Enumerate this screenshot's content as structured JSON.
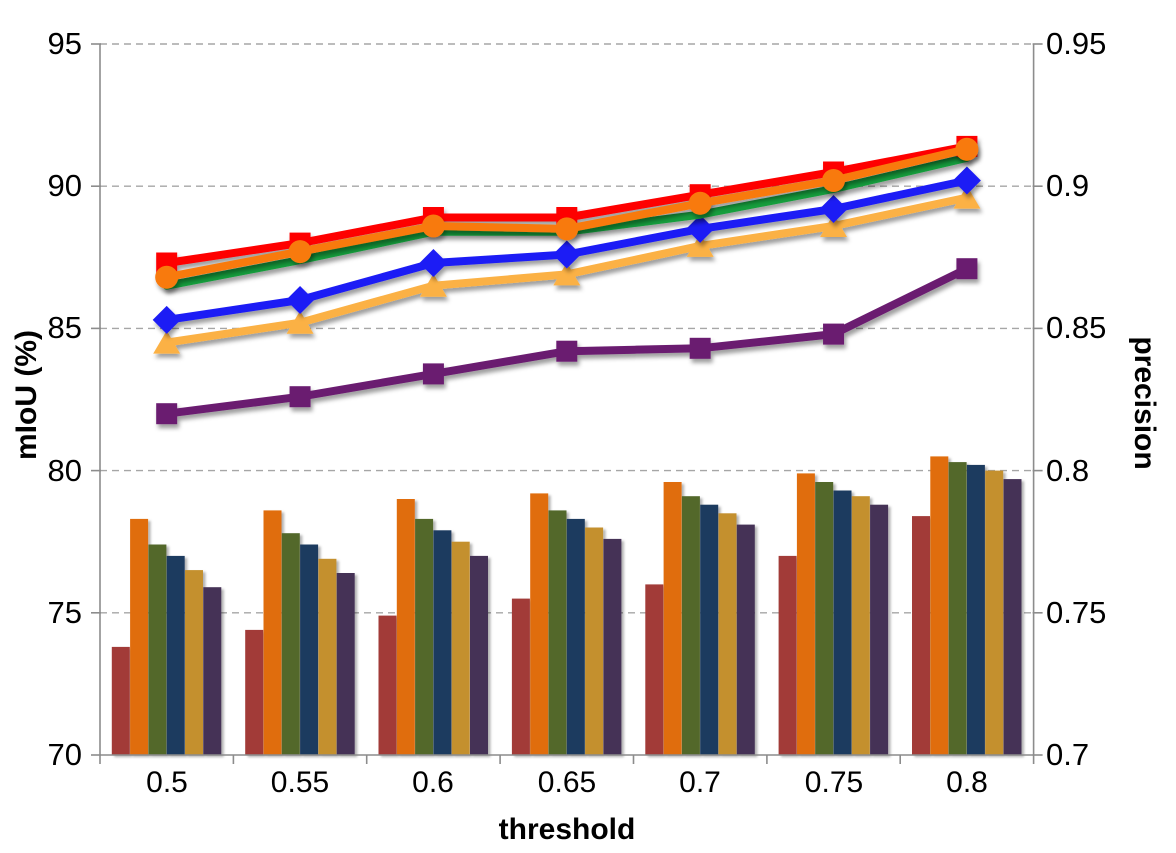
{
  "chart_data": {
    "type": "combo-bar-line",
    "xlabel": "threshold",
    "ylabel_left": "mIoU (%)",
    "ylabel_right": "precision",
    "background_color": "#FFFFFF",
    "legend": "none",
    "categories": [
      "0.5",
      "0.55",
      "0.6",
      "0.65",
      "0.7",
      "0.75",
      "0.8"
    ],
    "left_axis": {
      "min": 70,
      "max": 95,
      "tick_values": [
        95,
        90,
        85,
        80,
        75,
        70
      ],
      "labels": [
        "95",
        "90",
        "85",
        "80",
        "75",
        "70"
      ]
    },
    "right_axis": {
      "min": 0.7,
      "max": 0.95,
      "tick_values": [
        0.95,
        0.9,
        0.85,
        0.8,
        0.75,
        0.7
      ],
      "labels": [
        "0.95",
        "0.9",
        "0.85",
        "0.8",
        "0.75",
        "0.7"
      ]
    },
    "gridlines": {
      "values": [
        95,
        90,
        85,
        80,
        75
      ],
      "style": "dashed",
      "color": "#A6A6A6"
    },
    "axis_color": "#8C8C8C",
    "line_series": [
      {
        "name": "red-squares",
        "axis": "left",
        "marker": "square",
        "color": "#FE0000",
        "values": [
          87.3,
          88.0,
          88.9,
          88.9,
          89.7,
          90.5,
          91.4
        ]
      },
      {
        "name": "orange-circles",
        "axis": "left",
        "marker": "circle",
        "color": "#F87A0D",
        "values": [
          86.8,
          87.7,
          88.6,
          88.5,
          89.4,
          90.2,
          91.3
        ]
      },
      {
        "name": "green-plain",
        "axis": "left",
        "marker": "none",
        "color": "#139E3D",
        "values": [
          86.5,
          87.4,
          88.4,
          88.4,
          89.0,
          89.9,
          91.0
        ]
      },
      {
        "name": "blue-diamonds",
        "axis": "left",
        "marker": "diamond",
        "color": "#1C1CF5",
        "values": [
          85.3,
          86.0,
          87.3,
          87.6,
          88.5,
          89.2,
          90.2
        ]
      },
      {
        "name": "amber-triangles",
        "axis": "left",
        "marker": "triangle",
        "color": "#FBB144",
        "values": [
          84.5,
          85.2,
          86.5,
          86.9,
          87.9,
          88.6,
          89.6
        ]
      },
      {
        "name": "purple-squares",
        "axis": "left",
        "marker": "square",
        "color": "#6B1C70",
        "values": [
          82.0,
          82.6,
          83.4,
          84.2,
          84.3,
          84.8,
          87.1
        ]
      }
    ],
    "bar_series": [
      {
        "name": "brick",
        "axis": "right",
        "color": "#A23B38",
        "values": [
          0.738,
          0.744,
          0.749,
          0.755,
          0.76,
          0.77,
          0.784
        ]
      },
      {
        "name": "orange",
        "axis": "right",
        "color": "#E06D0E",
        "values": [
          0.783,
          0.786,
          0.79,
          0.792,
          0.796,
          0.799,
          0.805
        ]
      },
      {
        "name": "olive",
        "axis": "right",
        "color": "#53682B",
        "values": [
          0.774,
          0.778,
          0.783,
          0.786,
          0.791,
          0.796,
          0.803
        ]
      },
      {
        "name": "navy",
        "axis": "right",
        "color": "#1F3A5F",
        "values": [
          0.77,
          0.774,
          0.779,
          0.783,
          0.788,
          0.793,
          0.802
        ]
      },
      {
        "name": "gold",
        "axis": "right",
        "color": "#C4902D",
        "values": [
          0.765,
          0.769,
          0.775,
          0.78,
          0.785,
          0.791,
          0.8
        ]
      },
      {
        "name": "plum",
        "axis": "right",
        "color": "#443157",
        "values": [
          0.759,
          0.764,
          0.77,
          0.776,
          0.781,
          0.788,
          0.797
        ]
      }
    ],
    "draw_order": {
      "lines": [
        5,
        4,
        3,
        2,
        0,
        1
      ]
    }
  }
}
